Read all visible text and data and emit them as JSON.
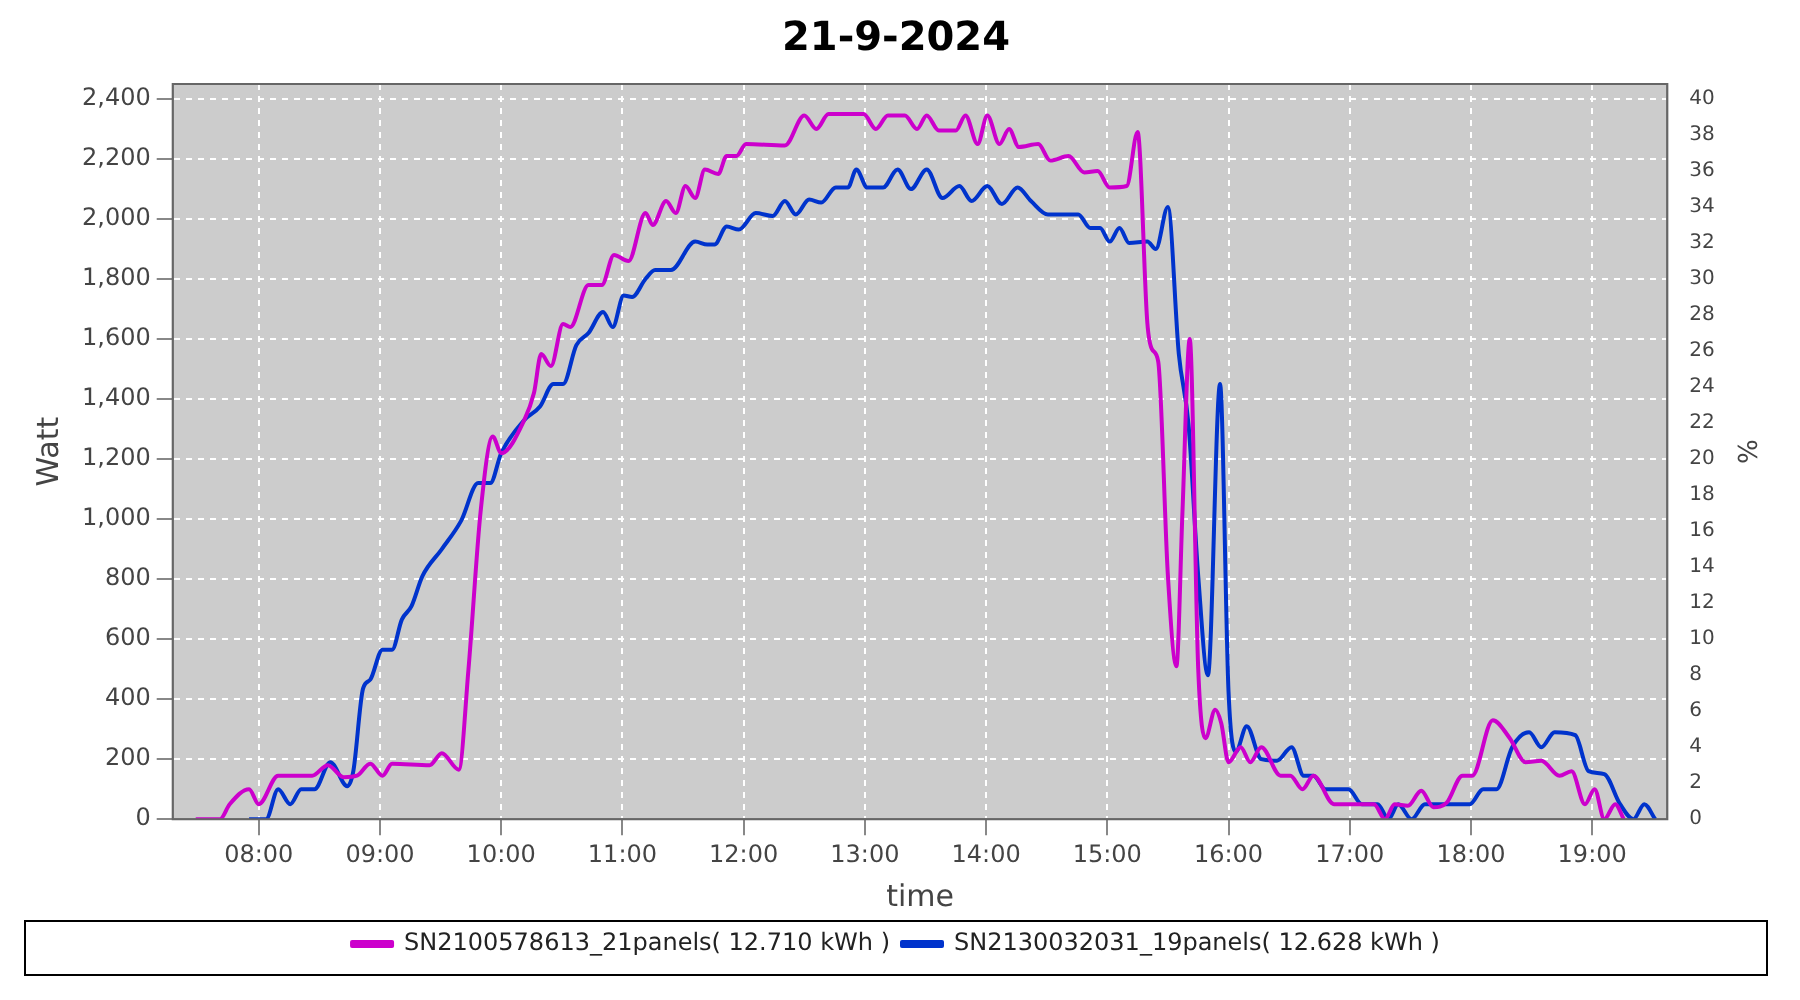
{
  "chart_data": {
    "type": "line",
    "title": "21-9-2024",
    "xlabel": "time",
    "ylabel": "Watt",
    "y2label": "%",
    "xlim": [
      7.29,
      19.62
    ],
    "xticks": [
      {
        "value": 8,
        "label": "08:00"
      },
      {
        "value": 9,
        "label": "09:00"
      },
      {
        "value": 10,
        "label": "10:00"
      },
      {
        "value": 11,
        "label": "11:00"
      },
      {
        "value": 12,
        "label": "12:00"
      },
      {
        "value": 13,
        "label": "13:00"
      },
      {
        "value": 14,
        "label": "14:00"
      },
      {
        "value": 15,
        "label": "15:00"
      },
      {
        "value": 16,
        "label": "16:00"
      },
      {
        "value": 17,
        "label": "17:00"
      },
      {
        "value": 18,
        "label": "18:00"
      },
      {
        "value": 19,
        "label": "19:00"
      }
    ],
    "ylim": [
      0,
      2450
    ],
    "yticks": [
      0,
      200,
      400,
      600,
      800,
      {
        "value": 1000,
        "label": "1,000"
      },
      {
        "value": 1200,
        "label": "1,200"
      },
      {
        "value": 1400,
        "label": "1,400"
      },
      {
        "value": 1600,
        "label": "1,600"
      },
      {
        "value": 1800,
        "label": "1,800"
      },
      {
        "value": 2000,
        "label": "2,000"
      },
      {
        "value": 2200,
        "label": "2,200"
      },
      {
        "value": 2400,
        "label": "2,400"
      }
    ],
    "y2lim": [
      0,
      40.8
    ],
    "y2ticks": [
      0,
      2,
      4,
      6,
      8,
      10,
      12,
      14,
      16,
      18,
      20,
      22,
      24,
      26,
      28,
      30,
      32,
      34,
      36,
      38,
      40
    ],
    "grid": true,
    "legend": "bottom",
    "marker": "none",
    "line_style": "solid",
    "series": [
      {
        "name": "SN2100578613_21panels( 12.710 kWh )",
        "color": "#cc00cc",
        "x": [
          7.48,
          7.68,
          7.76,
          7.92,
          8.0,
          8.16,
          8.44,
          8.57,
          8.7,
          8.81,
          8.92,
          9.02,
          9.1,
          9.41,
          9.51,
          9.65,
          9.73,
          9.83,
          9.93,
          10.0,
          10.19,
          10.27,
          10.33,
          10.41,
          10.51,
          10.57,
          10.72,
          10.83,
          10.93,
          11.05,
          11.19,
          11.25,
          11.36,
          11.44,
          11.52,
          11.6,
          11.68,
          11.79,
          11.86,
          11.94,
          12.02,
          12.34,
          12.5,
          12.6,
          12.7,
          12.99,
          13.09,
          13.19,
          13.33,
          13.43,
          13.51,
          13.61,
          13.75,
          13.83,
          13.93,
          14.01,
          14.11,
          14.19,
          14.27,
          14.43,
          14.53,
          14.68,
          14.81,
          14.92,
          15.02,
          15.16,
          15.25,
          15.33,
          15.37,
          15.42,
          15.5,
          15.57,
          15.62,
          15.68,
          15.75,
          15.81,
          15.89,
          15.94,
          16.0,
          16.1,
          16.18,
          16.27,
          16.43,
          16.51,
          16.61,
          16.7,
          16.87,
          17.2,
          17.29,
          17.37,
          17.48,
          17.59,
          17.69,
          17.8,
          17.93,
          18.01,
          18.18,
          18.32,
          18.45,
          18.58,
          18.73,
          18.83,
          18.94,
          19.02,
          19.1,
          19.19,
          19.26
        ],
        "values": [
          0,
          0,
          50,
          100,
          50,
          145,
          145,
          180,
          140,
          145,
          185,
          145,
          185,
          180,
          220,
          165,
          500,
          1025,
          1275,
          1220,
          1330,
          1420,
          1550,
          1510,
          1650,
          1640,
          1780,
          1780,
          1880,
          1860,
          2020,
          1980,
          2060,
          2020,
          2110,
          2070,
          2165,
          2150,
          2210,
          2210,
          2250,
          2245,
          2345,
          2300,
          2350,
          2350,
          2300,
          2345,
          2345,
          2300,
          2345,
          2295,
          2295,
          2345,
          2250,
          2345,
          2250,
          2300,
          2240,
          2250,
          2195,
          2210,
          2155,
          2160,
          2105,
          2110,
          2290,
          1655,
          1565,
          1525,
          810,
          510,
          1025,
          1600,
          500,
          270,
          365,
          320,
          190,
          240,
          190,
          240,
          145,
          145,
          100,
          145,
          50,
          50,
          0,
          50,
          45,
          95,
          40,
          55,
          145,
          145,
          330,
          270,
          190,
          195,
          145,
          160,
          50,
          100,
          0,
          50,
          0
        ]
      },
      {
        "name": "SN2130032031_19panels( 12.628 kWh )",
        "color": "#0033cc",
        "x": [
          7.92,
          8.06,
          8.16,
          8.26,
          8.35,
          8.46,
          8.59,
          8.73,
          8.78,
          8.86,
          8.92,
          9.02,
          9.1,
          9.18,
          9.26,
          9.35,
          9.51,
          9.67,
          9.81,
          9.91,
          10.0,
          10.19,
          10.32,
          10.43,
          10.51,
          10.62,
          10.72,
          10.84,
          10.92,
          11.01,
          11.08,
          11.19,
          11.27,
          11.4,
          11.6,
          11.7,
          11.76,
          11.86,
          11.96,
          12.1,
          12.24,
          12.34,
          12.43,
          12.54,
          12.64,
          12.76,
          12.86,
          12.93,
          13.02,
          13.15,
          13.27,
          13.38,
          13.51,
          13.64,
          13.78,
          13.88,
          14.01,
          14.13,
          14.26,
          14.37,
          14.51,
          14.76,
          14.86,
          14.94,
          15.02,
          15.1,
          15.18,
          15.33,
          15.4,
          15.5,
          15.59,
          15.67,
          15.75,
          15.83,
          15.93,
          16.0,
          16.06,
          16.15,
          16.27,
          16.4,
          16.52,
          16.62,
          16.7,
          16.8,
          16.99,
          17.1,
          17.23,
          17.32,
          17.4,
          17.51,
          17.62,
          17.99,
          18.1,
          18.21,
          18.34,
          18.48,
          18.58,
          18.69,
          18.86,
          18.97,
          19.1,
          19.23,
          19.34,
          19.43,
          19.52
        ],
        "values": [
          0,
          0,
          100,
          50,
          100,
          100,
          190,
          110,
          160,
          435,
          465,
          565,
          565,
          665,
          710,
          810,
          900,
          995,
          1120,
          1120,
          1220,
          1330,
          1375,
          1450,
          1450,
          1580,
          1620,
          1690,
          1640,
          1745,
          1740,
          1800,
          1830,
          1830,
          1925,
          1915,
          1915,
          1975,
          1965,
          2020,
          2010,
          2060,
          2015,
          2065,
          2055,
          2105,
          2105,
          2165,
          2105,
          2105,
          2165,
          2100,
          2165,
          2070,
          2110,
          2060,
          2110,
          2050,
          2105,
          2060,
          2015,
          2015,
          1970,
          1970,
          1925,
          1970,
          1920,
          1925,
          1900,
          2040,
          1550,
          1315,
          810,
          480,
          1450,
          425,
          225,
          310,
          200,
          195,
          240,
          145,
          145,
          100,
          100,
          50,
          50,
          0,
          50,
          0,
          50,
          50,
          100,
          100,
          240,
          290,
          240,
          290,
          280,
          160,
          150,
          50,
          0,
          50,
          0
        ]
      }
    ]
  }
}
